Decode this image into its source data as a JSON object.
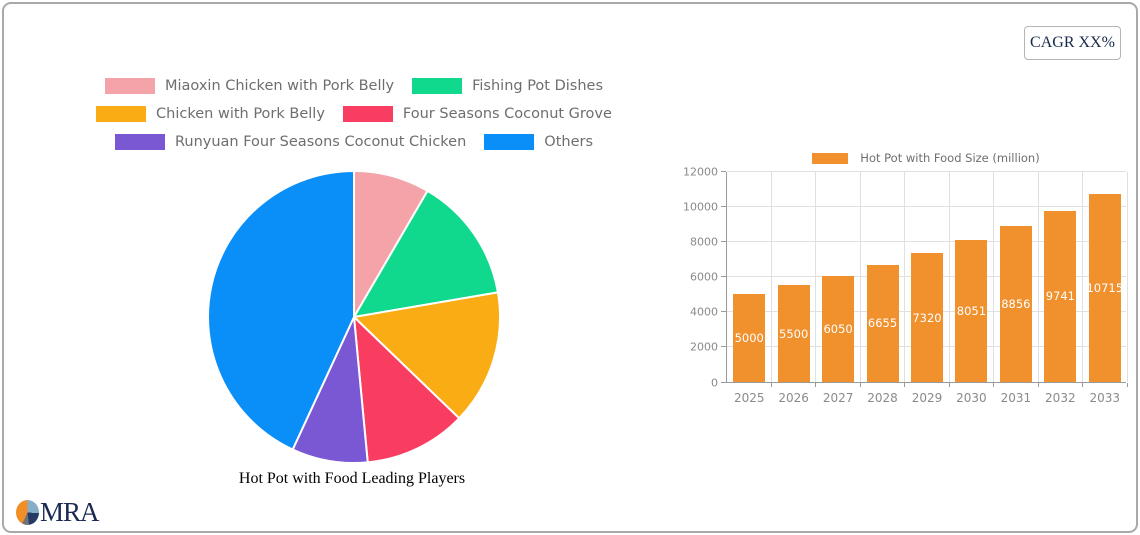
{
  "cagr": {
    "label": "CAGR XX%"
  },
  "logo": {
    "text": "MRA"
  },
  "chart_data": [
    {
      "type": "pie",
      "title": "Hot Pot with Food Leading Players",
      "labels": [
        "Miaoxin Chicken with Pork Belly",
        "Fishing Pot Dishes",
        "Chicken with Pork Belly",
        "Four Seasons Coconut Grove",
        "Runyuan Four Seasons Coconut Chicken",
        "Others"
      ],
      "values": [
        8.4,
        13.9,
        14.9,
        11.3,
        8.4,
        43.1
      ],
      "colors": [
        "#F4A3A8",
        "#10D98D",
        "#F9AC14",
        "#F93D60",
        "#7A58D3",
        "#0A8EF8"
      ],
      "start_angle_deg": 0,
      "direction": "clockwise",
      "legend_position": "top",
      "legend_columns": 2
    },
    {
      "type": "bar",
      "series_name": "Hot Pot with Food Size (million)",
      "categories": [
        "2025",
        "2026",
        "2027",
        "2028",
        "2029",
        "2030",
        "2031",
        "2032",
        "2033"
      ],
      "values": [
        5000,
        5500,
        6050,
        6655,
        7320,
        8051,
        8856,
        9741,
        10715
      ],
      "bar_color": "#F0912D",
      "value_label_color": "#ffffff",
      "ylim": [
        0,
        12000
      ],
      "yticks": [
        0,
        2000,
        4000,
        6000,
        8000,
        10000,
        12000
      ],
      "grid": true,
      "legend_position": "top"
    }
  ]
}
